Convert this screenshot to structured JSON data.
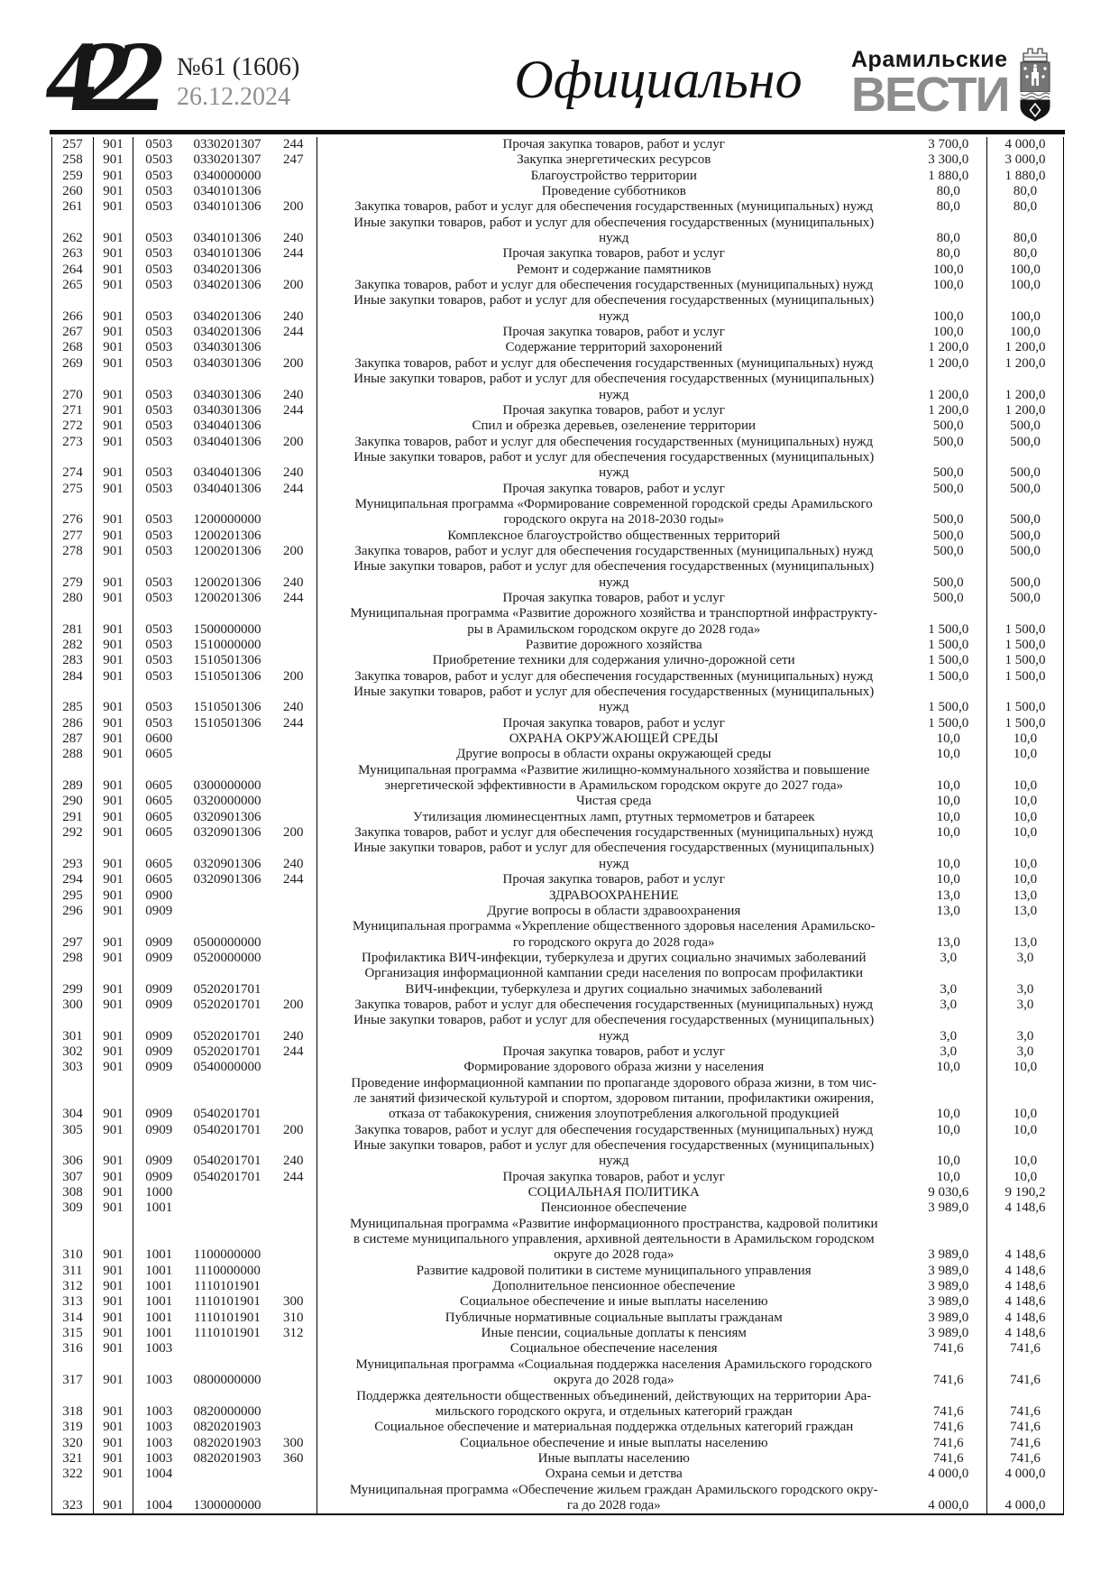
{
  "page": {
    "number": "422",
    "issue": "№61 (1606)",
    "date": "26.12.2024",
    "section": "Официально",
    "brand": {
      "top": "Арамильские",
      "bottom": "ВЕСТИ"
    },
    "colors": {
      "ink": "#1a1a1a",
      "muted_gray": "#8d8d8d",
      "brand_gray": "#8d8d8d"
    }
  },
  "budget_table": {
    "columns": [
      "line-number",
      "grbs-code",
      "section-code",
      "target-article",
      "expense-type",
      "name",
      "amount-1",
      "amount-2"
    ],
    "rows": [
      [
        "257",
        "901",
        "0503",
        "0330201307",
        "244",
        "Прочая закупка товаров, работ и услуг",
        "3 700,0",
        "4 000,0"
      ],
      [
        "258",
        "901",
        "0503",
        "0330201307",
        "247",
        "Закупка энергетических ресурсов",
        "3 300,0",
        "3 000,0"
      ],
      [
        "259",
        "901",
        "0503",
        "0340000000",
        "",
        "Благоустройство территории",
        "1 880,0",
        "1 880,0"
      ],
      [
        "260",
        "901",
        "0503",
        "0340101306",
        "",
        "Проведение субботников",
        "80,0",
        "80,0"
      ],
      [
        "261",
        "901",
        "0503",
        "0340101306",
        "200",
        "Закупка товаров, работ и услуг для обеспечения государственных (муниципальных) нужд",
        "80,0",
        "80,0"
      ],
      [
        "262",
        "901",
        "0503",
        "0340101306",
        "240",
        "Иные закупки товаров, работ и услуг для обеспечения государственных (муниципальных)\nнужд",
        "80,0",
        "80,0"
      ],
      [
        "263",
        "901",
        "0503",
        "0340101306",
        "244",
        "Прочая закупка товаров, работ и услуг",
        "80,0",
        "80,0"
      ],
      [
        "264",
        "901",
        "0503",
        "0340201306",
        "",
        "Ремонт и содержание памятников",
        "100,0",
        "100,0"
      ],
      [
        "265",
        "901",
        "0503",
        "0340201306",
        "200",
        "Закупка товаров, работ и услуг для обеспечения государственных (муниципальных) нужд",
        "100,0",
        "100,0"
      ],
      [
        "266",
        "901",
        "0503",
        "0340201306",
        "240",
        "Иные закупки товаров, работ и услуг для обеспечения государственных (муниципальных)\nнужд",
        "100,0",
        "100,0"
      ],
      [
        "267",
        "901",
        "0503",
        "0340201306",
        "244",
        "Прочая закупка товаров, работ и услуг",
        "100,0",
        "100,0"
      ],
      [
        "268",
        "901",
        "0503",
        "0340301306",
        "",
        "Содержание территорий захоронений",
        "1 200,0",
        "1 200,0"
      ],
      [
        "269",
        "901",
        "0503",
        "0340301306",
        "200",
        "Закупка товаров, работ и услуг для обеспечения государственных (муниципальных) нужд",
        "1 200,0",
        "1 200,0"
      ],
      [
        "270",
        "901",
        "0503",
        "0340301306",
        "240",
        "Иные закупки товаров, работ и услуг для обеспечения государственных (муниципальных)\nнужд",
        "1 200,0",
        "1 200,0"
      ],
      [
        "271",
        "901",
        "0503",
        "0340301306",
        "244",
        "Прочая закупка товаров, работ и услуг",
        "1 200,0",
        "1 200,0"
      ],
      [
        "272",
        "901",
        "0503",
        "0340401306",
        "",
        "Спил и обрезка деревьев, озеленение территории",
        "500,0",
        "500,0"
      ],
      [
        "273",
        "901",
        "0503",
        "0340401306",
        "200",
        "Закупка товаров, работ и услуг для обеспечения государственных (муниципальных) нужд",
        "500,0",
        "500,0"
      ],
      [
        "274",
        "901",
        "0503",
        "0340401306",
        "240",
        "Иные закупки товаров, работ и услуг для обеспечения государственных (муниципальных)\nнужд",
        "500,0",
        "500,0"
      ],
      [
        "275",
        "901",
        "0503",
        "0340401306",
        "244",
        "Прочая закупка товаров, работ и услуг",
        "500,0",
        "500,0"
      ],
      [
        "276",
        "901",
        "0503",
        "1200000000",
        "",
        "Муниципальная программа «Формирование современной городской среды Арамильского\nгородского округа на 2018-2030 годы»",
        "500,0",
        "500,0"
      ],
      [
        "277",
        "901",
        "0503",
        "1200201306",
        "",
        "Комплексное благоустройство общественных территорий",
        "500,0",
        "500,0"
      ],
      [
        "278",
        "901",
        "0503",
        "1200201306",
        "200",
        "Закупка товаров, работ и услуг для обеспечения государственных (муниципальных) нужд",
        "500,0",
        "500,0"
      ],
      [
        "279",
        "901",
        "0503",
        "1200201306",
        "240",
        "Иные закупки товаров, работ и услуг для обеспечения государственных (муниципальных)\nнужд",
        "500,0",
        "500,0"
      ],
      [
        "280",
        "901",
        "0503",
        "1200201306",
        "244",
        "Прочая закупка товаров, работ и услуг",
        "500,0",
        "500,0"
      ],
      [
        "281",
        "901",
        "0503",
        "1500000000",
        "",
        "Муниципальная программа «Развитие дорожного хозяйства и транспортной инфраструкту-\nры в Арамильском городском округе до 2028 года»",
        "1 500,0",
        "1 500,0"
      ],
      [
        "282",
        "901",
        "0503",
        "1510000000",
        "",
        "Развитие дорожного хозяйства",
        "1 500,0",
        "1 500,0"
      ],
      [
        "283",
        "901",
        "0503",
        "1510501306",
        "",
        "Приобретение техники для содержания улично-дорожной сети",
        "1 500,0",
        "1 500,0"
      ],
      [
        "284",
        "901",
        "0503",
        "1510501306",
        "200",
        "Закупка товаров, работ и услуг для обеспечения государственных (муниципальных) нужд",
        "1 500,0",
        "1 500,0"
      ],
      [
        "285",
        "901",
        "0503",
        "1510501306",
        "240",
        "Иные закупки товаров, работ и услуг для обеспечения государственных (муниципальных)\nнужд",
        "1 500,0",
        "1 500,0"
      ],
      [
        "286",
        "901",
        "0503",
        "1510501306",
        "244",
        "Прочая закупка товаров, работ и услуг",
        "1 500,0",
        "1 500,0"
      ],
      [
        "287",
        "901",
        "0600",
        "",
        "",
        "ОХРАНА ОКРУЖАЮЩЕЙ СРЕДЫ",
        "10,0",
        "10,0"
      ],
      [
        "288",
        "901",
        "0605",
        "",
        "",
        "Другие вопросы в области охраны окружающей среды",
        "10,0",
        "10,0"
      ],
      [
        "289",
        "901",
        "0605",
        "0300000000",
        "",
        "Муниципальная программа «Развитие жилищно-коммунального хозяйства и повышение\nэнергетической эффективности в Арамильском городском округе до 2027 года»",
        "10,0",
        "10,0"
      ],
      [
        "290",
        "901",
        "0605",
        "0320000000",
        "",
        "Чистая среда",
        "10,0",
        "10,0"
      ],
      [
        "291",
        "901",
        "0605",
        "0320901306",
        "",
        "Утилизация люминесцентных ламп, ртутных термометров и батареек",
        "10,0",
        "10,0"
      ],
      [
        "292",
        "901",
        "0605",
        "0320901306",
        "200",
        "Закупка товаров, работ и услуг для обеспечения государственных (муниципальных) нужд",
        "10,0",
        "10,0"
      ],
      [
        "293",
        "901",
        "0605",
        "0320901306",
        "240",
        "Иные закупки товаров, работ и услуг для обеспечения государственных (муниципальных)\nнужд",
        "10,0",
        "10,0"
      ],
      [
        "294",
        "901",
        "0605",
        "0320901306",
        "244",
        "Прочая закупка товаров, работ и услуг",
        "10,0",
        "10,0"
      ],
      [
        "295",
        "901",
        "0900",
        "",
        "",
        "ЗДРАВООХРАНЕНИЕ",
        "13,0",
        "13,0"
      ],
      [
        "296",
        "901",
        "0909",
        "",
        "",
        "Другие вопросы в области здравоохранения",
        "13,0",
        "13,0"
      ],
      [
        "297",
        "901",
        "0909",
        "0500000000",
        "",
        "Муниципальная программа «Укрепление общественного здоровья населения Арамильско-\nго городского округа до 2028 года»",
        "13,0",
        "13,0"
      ],
      [
        "298",
        "901",
        "0909",
        "0520000000",
        "",
        "Профилактика ВИЧ-инфекции, туберкулеза и других социально значимых заболеваний",
        "3,0",
        "3,0"
      ],
      [
        "299",
        "901",
        "0909",
        "0520201701",
        "",
        "Организация информационной кампании среди населения по вопросам профилактики\nВИЧ-инфекции, туберкулеза и других социально значимых заболеваний",
        "3,0",
        "3,0"
      ],
      [
        "300",
        "901",
        "0909",
        "0520201701",
        "200",
        "Закупка товаров, работ и услуг для обеспечения государственных (муниципальных) нужд",
        "3,0",
        "3,0"
      ],
      [
        "301",
        "901",
        "0909",
        "0520201701",
        "240",
        "Иные закупки товаров, работ и услуг для обеспечения государственных (муниципальных)\nнужд",
        "3,0",
        "3,0"
      ],
      [
        "302",
        "901",
        "0909",
        "0520201701",
        "244",
        "Прочая закупка товаров, работ и услуг",
        "3,0",
        "3,0"
      ],
      [
        "303",
        "901",
        "0909",
        "0540000000",
        "",
        "Формирование здорового образа жизни у населения",
        "10,0",
        "10,0"
      ],
      [
        "304",
        "901",
        "0909",
        "0540201701",
        "",
        "Проведение информационной кампании по пропаганде здорового образа жизни, в том чис-\nле занятий физической культурой и спортом, здоровом питании, профилактики ожирения,\nотказа от табакокурения, снижения злоупотребления алкогольной продукцией",
        "10,0",
        "10,0"
      ],
      [
        "305",
        "901",
        "0909",
        "0540201701",
        "200",
        "Закупка товаров, работ и услуг для обеспечения государственных (муниципальных) нужд",
        "10,0",
        "10,0"
      ],
      [
        "306",
        "901",
        "0909",
        "0540201701",
        "240",
        "Иные закупки товаров, работ и услуг для обеспечения государственных (муниципальных)\nнужд",
        "10,0",
        "10,0"
      ],
      [
        "307",
        "901",
        "0909",
        "0540201701",
        "244",
        "Прочая закупка товаров, работ и услуг",
        "10,0",
        "10,0"
      ],
      [
        "308",
        "901",
        "1000",
        "",
        "",
        "СОЦИАЛЬНАЯ ПОЛИТИКА",
        "9 030,6",
        "9 190,2"
      ],
      [
        "309",
        "901",
        "1001",
        "",
        "",
        "Пенсионное обеспечение",
        "3 989,0",
        "4 148,6"
      ],
      [
        "310",
        "901",
        "1001",
        "1100000000",
        "",
        "Муниципальная программа «Развитие информационного пространства, кадровой политики\nв системе муниципального управления, архивной деятельности в Арамильском городском\nокруге до 2028 года»",
        "3 989,0",
        "4 148,6"
      ],
      [
        "311",
        "901",
        "1001",
        "1110000000",
        "",
        "Развитие кадровой политики в системе муниципального управления",
        "3 989,0",
        "4 148,6"
      ],
      [
        "312",
        "901",
        "1001",
        "1110101901",
        "",
        "Дополнительное пенсионное обеспечение",
        "3 989,0",
        "4 148,6"
      ],
      [
        "313",
        "901",
        "1001",
        "1110101901",
        "300",
        "Социальное обеспечение и иные выплаты населению",
        "3 989,0",
        "4 148,6"
      ],
      [
        "314",
        "901",
        "1001",
        "1110101901",
        "310",
        "Публичные нормативные социальные выплаты гражданам",
        "3 989,0",
        "4 148,6"
      ],
      [
        "315",
        "901",
        "1001",
        "1110101901",
        "312",
        "Иные пенсии, социальные доплаты к пенсиям",
        "3 989,0",
        "4 148,6"
      ],
      [
        "316",
        "901",
        "1003",
        "",
        "",
        "Социальное обеспечение населения",
        "741,6",
        "741,6"
      ],
      [
        "317",
        "901",
        "1003",
        "0800000000",
        "",
        "Муниципальная программа «Социальная поддержка населения Арамильского городского\nокруга до 2028 года»",
        "741,6",
        "741,6"
      ],
      [
        "318",
        "901",
        "1003",
        "0820000000",
        "",
        "Поддержка деятельности общественных объединений, действующих на территории Ара-\nмильского городского округа, и отдельных категорий граждан",
        "741,6",
        "741,6"
      ],
      [
        "319",
        "901",
        "1003",
        "0820201903",
        "",
        "Социальное обеспечение и материальная поддержка отдельных категорий граждан",
        "741,6",
        "741,6"
      ],
      [
        "320",
        "901",
        "1003",
        "0820201903",
        "300",
        "Социальное обеспечение и иные выплаты населению",
        "741,6",
        "741,6"
      ],
      [
        "321",
        "901",
        "1003",
        "0820201903",
        "360",
        "Иные выплаты населению",
        "741,6",
        "741,6"
      ],
      [
        "322",
        "901",
        "1004",
        "",
        "",
        "Охрана семьи и детства",
        "4 000,0",
        "4 000,0"
      ],
      [
        "323",
        "901",
        "1004",
        "1300000000",
        "",
        "Муниципальная программа «Обеспечение жильем граждан Арамильского городского окру-\nга до 2028 года»",
        "4 000,0",
        "4 000,0"
      ]
    ]
  }
}
